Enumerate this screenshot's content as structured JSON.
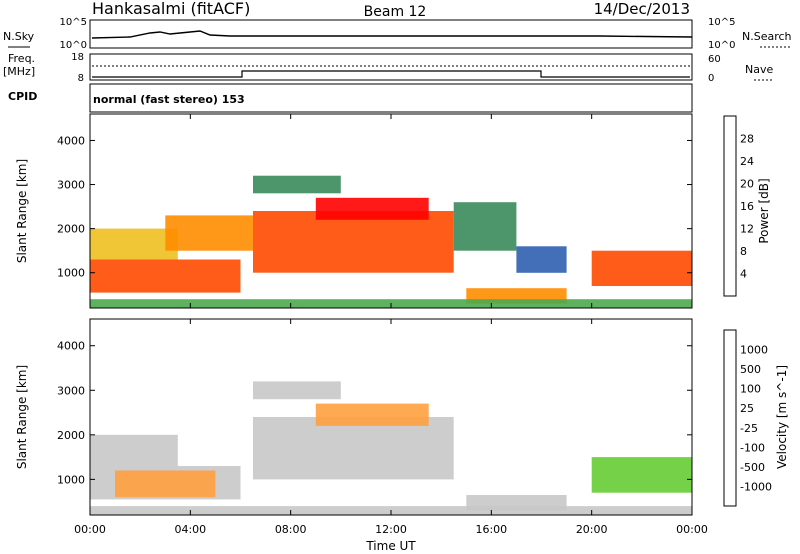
{
  "header": {
    "station": "Hankasalmi (fitACF)",
    "beam": "Beam 12",
    "date": "14/Dec/2013"
  },
  "top_panels": {
    "nsky": {
      "left_label": "N.Sky",
      "right_label": "N.Search",
      "left_ticks": [
        "10^5",
        "10^0"
      ],
      "right_ticks": [
        "10^5",
        "10^0"
      ]
    },
    "freq": {
      "left_label": "Freq.",
      "left_unit": "[MHz]",
      "left_ticks": [
        "18",
        "8"
      ],
      "right_label": "Nave",
      "right_ticks": [
        "60",
        "0"
      ],
      "cpid_label": "CPID"
    },
    "cpid_text": "normal (fast stereo) 153"
  },
  "time_axis": {
    "label": "Time UT",
    "ticks": [
      "00:00",
      "04:00",
      "08:00",
      "12:00",
      "16:00",
      "20:00",
      "00:00"
    ]
  },
  "colors": {
    "power_scale": [
      "#0000ff",
      "#2e5fb0",
      "#3a8a5a",
      "#4ca84c",
      "#f0c020",
      "#ff8c00",
      "#ff4a00",
      "#ff0000"
    ],
    "velocity_scale": [
      "#ff0000",
      "#ff5a00",
      "#ff8c00",
      "#ffa040",
      "#c8c8c8",
      "#c8c8c8",
      "#66cc33",
      "#3a9a5a",
      "#2e7a9a",
      "#2040c0"
    ],
    "ground_scatter": "#c8c8c8"
  },
  "chart_data": [
    {
      "type": "heatmap",
      "title": "Power",
      "ylabel": "Slant Range [km]",
      "xlabel": "",
      "y_ticks": [
        "1000",
        "2000",
        "3000",
        "4000"
      ],
      "ylim": [
        200,
        4600
      ],
      "xlim": [
        0,
        24
      ],
      "colorbar_label": "Power [dB]",
      "colorbar_ticks": [
        "4",
        "8",
        "12",
        "16",
        "20",
        "24",
        "28"
      ],
      "colorbar_range": [
        0,
        32
      ],
      "regions": [
        {
          "t0": 0.0,
          "t1": 6.0,
          "r0": 550,
          "r1": 1300,
          "value": 27
        },
        {
          "t0": 0.0,
          "t1": 3.5,
          "r0": 1300,
          "r1": 2000,
          "value": 18
        },
        {
          "t0": 3.0,
          "t1": 6.5,
          "r0": 1500,
          "r1": 2300,
          "value": 20
        },
        {
          "t0": 6.5,
          "t1": 14.5,
          "r0": 1000,
          "r1": 2400,
          "value": 25
        },
        {
          "t0": 9.0,
          "t1": 13.5,
          "r0": 2200,
          "r1": 2700,
          "value": 28
        },
        {
          "t0": 14.5,
          "t1": 17.0,
          "r0": 1500,
          "r1": 2600,
          "value": 10
        },
        {
          "t0": 15.0,
          "t1": 19.0,
          "r0": 300,
          "r1": 650,
          "value": 22
        },
        {
          "t0": 17.0,
          "t1": 19.0,
          "r0": 1000,
          "r1": 1600,
          "value": 6
        },
        {
          "t0": 20.0,
          "t1": 24.0,
          "r0": 700,
          "r1": 1500,
          "value": 26
        },
        {
          "t0": 6.5,
          "t1": 10.0,
          "r0": 2800,
          "r1": 3200,
          "value": 10
        },
        {
          "t0": 0.0,
          "t1": 24.0,
          "r0": 200,
          "r1": 400,
          "value": 14
        }
      ]
    },
    {
      "type": "heatmap",
      "title": "Velocity",
      "ylabel": "Slant Range [km]",
      "xlabel": "Time UT",
      "y_ticks": [
        "1000",
        "2000",
        "3000",
        "4000"
      ],
      "ylim": [
        200,
        4600
      ],
      "xlim": [
        0,
        24
      ],
      "colorbar_label": "Velocity [m s^-1]",
      "colorbar_ticks": [
        "1000",
        "500",
        "100",
        "25",
        "-25",
        "-100",
        "-500",
        "-1000"
      ],
      "colorbar_range": [
        -1000,
        1000
      ],
      "regions": [
        {
          "t0": 0.0,
          "t1": 6.0,
          "r0": 550,
          "r1": 1300,
          "value": -300,
          "ground": true
        },
        {
          "t0": 1.0,
          "t1": 5.0,
          "r0": 600,
          "r1": 1200,
          "value": -400
        },
        {
          "t0": 0.0,
          "t1": 3.5,
          "r0": 1300,
          "r1": 2000,
          "value": -200
        },
        {
          "t0": 6.5,
          "t1": 14.5,
          "r0": 1000,
          "r1": 2400,
          "value": 0,
          "ground": true
        },
        {
          "t0": 9.0,
          "t1": 13.5,
          "r0": 2200,
          "r1": 2700,
          "value": -300
        },
        {
          "t0": 15.0,
          "t1": 19.0,
          "r0": 300,
          "r1": 650,
          "value": 0,
          "ground": true
        },
        {
          "t0": 20.0,
          "t1": 24.0,
          "r0": 700,
          "r1": 1500,
          "value": 300
        },
        {
          "t0": 6.5,
          "t1": 10.0,
          "r0": 2800,
          "r1": 3200,
          "value": -200
        },
        {
          "t0": 0.0,
          "t1": 24.0,
          "r0": 200,
          "r1": 400,
          "value": 50
        }
      ]
    }
  ]
}
